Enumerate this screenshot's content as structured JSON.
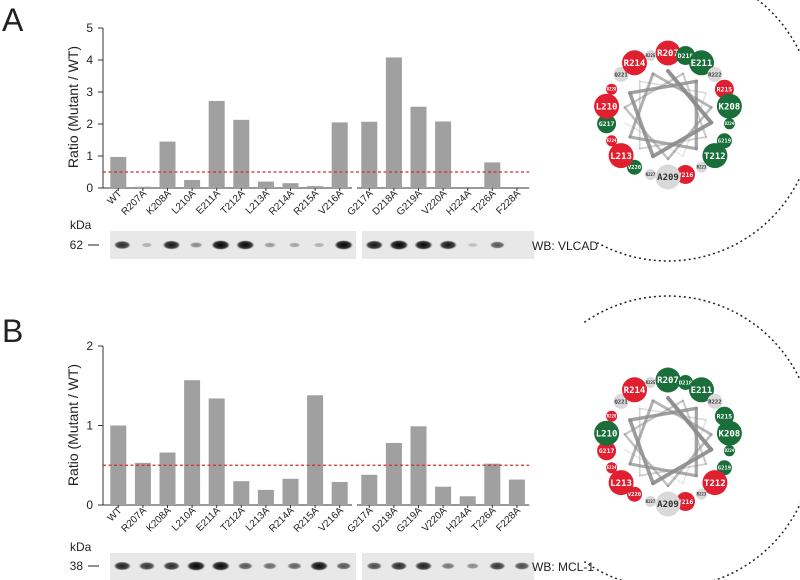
{
  "colors": {
    "bar": "#a0a0a0",
    "threshold": "#d42a2a",
    "acidic_red": "#e02030",
    "green": "#1a6e3a",
    "grey_residue": "#d9d9d9",
    "axis": "#333333"
  },
  "chart_data": [
    {
      "panel": "A",
      "type": "bar",
      "ylabel": "Ratio (Mutant / WT)",
      "ylim": [
        0,
        5
      ],
      "yticks": [
        "0",
        "1",
        "2",
        "3",
        "4",
        "5"
      ],
      "threshold": 0.5,
      "groups": [
        {
          "categories": [
            "WT",
            "R207A",
            "K208A",
            "L210A",
            "E211A",
            "T212A",
            "L213A",
            "R214A",
            "R215A",
            "V216A"
          ],
          "values": [
            0.97,
            0.04,
            1.45,
            0.25,
            2.72,
            2.13,
            0.2,
            0.15,
            0.06,
            2.05
          ]
        },
        {
          "categories": [
            "G217A",
            "D218A",
            "G219A",
            "V220A",
            "H224A",
            "T226A",
            "F228A"
          ],
          "values": [
            2.07,
            4.08,
            2.54,
            2.08,
            0.0,
            0.8,
            0.0
          ]
        }
      ],
      "blot": {
        "kda_label": "kDa",
        "marker": "62",
        "label": "WB: VLCAD",
        "intensities_left": [
          0.75,
          0.12,
          0.85,
          0.3,
          0.95,
          0.92,
          0.22,
          0.18,
          0.12,
          0.95
        ],
        "intensities_right": [
          0.85,
          1.0,
          0.92,
          0.85,
          0.05,
          0.55,
          0.0
        ]
      },
      "wheel_residues": [
        {
          "label": "R207",
          "kind": "red",
          "size": "large"
        },
        {
          "label": "D218",
          "kind": "green",
          "size": "medium"
        },
        {
          "label": "E211",
          "kind": "green",
          "size": "large"
        },
        {
          "label": "R222",
          "kind": "grey",
          "size": "small"
        },
        {
          "label": "R215",
          "kind": "red",
          "size": "medium"
        },
        {
          "label": "K208",
          "kind": "green",
          "size": "large"
        },
        {
          "label": "D224",
          "kind": "green",
          "size": "tiny"
        },
        {
          "label": "G219",
          "kind": "green",
          "size": "small"
        },
        {
          "label": "T212",
          "kind": "green",
          "size": "large"
        },
        {
          "label": "R223",
          "kind": "grey",
          "size": "tiny"
        },
        {
          "label": "V216",
          "kind": "red",
          "size": "medium"
        },
        {
          "label": "A209",
          "kind": "grey",
          "size": "large"
        },
        {
          "label": "R227",
          "kind": "grey",
          "size": "tiny"
        },
        {
          "label": "V220",
          "kind": "green",
          "size": "small"
        },
        {
          "label": "L213",
          "kind": "red",
          "size": "large"
        },
        {
          "label": "E224",
          "kind": "red",
          "size": "tiny"
        },
        {
          "label": "G217",
          "kind": "green",
          "size": "medium"
        },
        {
          "label": "L210",
          "kind": "red",
          "size": "large"
        },
        {
          "label": "R228",
          "kind": "red",
          "size": "tiny"
        },
        {
          "label": "Q221",
          "kind": "grey",
          "size": "small"
        },
        {
          "label": "R214",
          "kind": "red",
          "size": "large"
        },
        {
          "label": "R225",
          "kind": "grey",
          "size": "tiny"
        }
      ]
    },
    {
      "panel": "B",
      "type": "bar",
      "ylabel": "Ratio (Mutant / WT)",
      "ylim": [
        0,
        2
      ],
      "yticks": [
        "0",
        "1",
        "2"
      ],
      "threshold": 0.5,
      "groups": [
        {
          "categories": [
            "WT",
            "R207A",
            "K208A",
            "L210A",
            "E211A",
            "T212A",
            "L213A",
            "R214A",
            "R215A",
            "V216A"
          ],
          "values": [
            1.0,
            0.53,
            0.66,
            1.57,
            1.34,
            0.3,
            0.19,
            0.33,
            1.38,
            0.29
          ]
        },
        {
          "categories": [
            "G217A",
            "D218A",
            "G219A",
            "V220A",
            "H224A",
            "T226A",
            "F228A"
          ],
          "values": [
            0.38,
            0.78,
            0.99,
            0.23,
            0.11,
            0.52,
            0.32
          ]
        }
      ],
      "blot": {
        "kda_label": "kDa",
        "marker": "38",
        "label": "WB: MCL-1",
        "intensities_left": [
          0.8,
          0.7,
          0.75,
          0.95,
          0.92,
          0.55,
          0.45,
          0.5,
          0.9,
          0.55
        ],
        "intensities_right": [
          0.6,
          0.75,
          0.8,
          0.4,
          0.3,
          0.7,
          0.6
        ]
      },
      "wheel_residues": [
        {
          "label": "R207",
          "kind": "green",
          "size": "large"
        },
        {
          "label": "D218",
          "kind": "green",
          "size": "small"
        },
        {
          "label": "E211",
          "kind": "green",
          "size": "large"
        },
        {
          "label": "R222",
          "kind": "grey",
          "size": "small"
        },
        {
          "label": "R215",
          "kind": "green",
          "size": "medium"
        },
        {
          "label": "K208",
          "kind": "green",
          "size": "large"
        },
        {
          "label": "D224",
          "kind": "green",
          "size": "tiny"
        },
        {
          "label": "G219",
          "kind": "green",
          "size": "small"
        },
        {
          "label": "T212",
          "kind": "red",
          "size": "large"
        },
        {
          "label": "R223",
          "kind": "grey",
          "size": "tiny"
        },
        {
          "label": "V216",
          "kind": "red",
          "size": "medium"
        },
        {
          "label": "A209",
          "kind": "grey",
          "size": "large"
        },
        {
          "label": "R227",
          "kind": "grey",
          "size": "tiny"
        },
        {
          "label": "V220",
          "kind": "red",
          "size": "small"
        },
        {
          "label": "L213",
          "kind": "red",
          "size": "large"
        },
        {
          "label": "E224",
          "kind": "red",
          "size": "tiny"
        },
        {
          "label": "G217",
          "kind": "red",
          "size": "medium"
        },
        {
          "label": "L210",
          "kind": "green",
          "size": "large"
        },
        {
          "label": "R228",
          "kind": "red",
          "size": "tiny"
        },
        {
          "label": "Q221",
          "kind": "grey",
          "size": "small"
        },
        {
          "label": "R214",
          "kind": "red",
          "size": "large"
        },
        {
          "label": "R225",
          "kind": "grey",
          "size": "tiny"
        }
      ]
    }
  ]
}
